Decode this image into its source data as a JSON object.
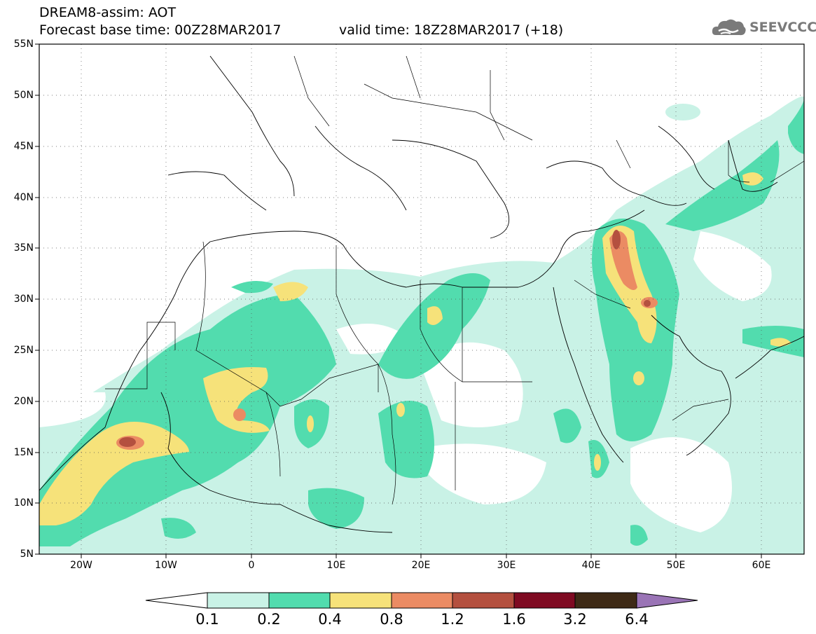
{
  "header": {
    "title_line1": "DREAM8-assim: AOT",
    "title_line2": "Forecast base time: 00Z28MAR2017",
    "valid_time": "valid time: 18Z28MAR2017 (+18)"
  },
  "logo": {
    "text": "SEEVCCC",
    "icon": "cloud-icon"
  },
  "map": {
    "lon_range": [
      -25,
      65
    ],
    "lat_range": [
      5,
      55
    ],
    "lat_ticks": [
      "55N",
      "50N",
      "45N",
      "40N",
      "35N",
      "30N",
      "25N",
      "20N",
      "15N",
      "10N",
      "5N"
    ],
    "lon_ticks": [
      "20W",
      "10W",
      "0",
      "10E",
      "20E",
      "30E",
      "40E",
      "50E",
      "60E"
    ],
    "gridlines": "dotted"
  },
  "colorbar": {
    "levels": [
      "0.1",
      "0.2",
      "0.4",
      "0.8",
      "1.2",
      "1.6",
      "3.2",
      "6.4"
    ],
    "colors": [
      "#ffffff",
      "#c9f2e6",
      "#52dcae",
      "#f6e27a",
      "#eb8b63",
      "#b4503f",
      "#7f0a22",
      "#3e2a16",
      "#9a74b6"
    ]
  }
}
